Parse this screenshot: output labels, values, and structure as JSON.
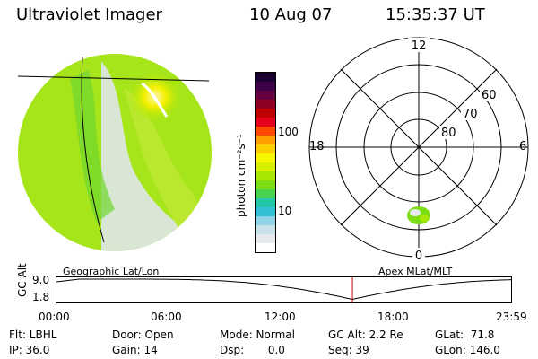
{
  "header": {
    "title": "Ultraviolet Imager",
    "date": "10 Aug 07",
    "time": "15:35:37 UT"
  },
  "colorbar": {
    "unit_label": "photon cm⁻²s⁻¹",
    "ticks": [
      "100",
      "10"
    ],
    "colors_top_to_bottom": [
      "#1a0030",
      "#3b0046",
      "#650040",
      "#8e0022",
      "#be0000",
      "#e8001f",
      "#ff4a00",
      "#ff9f00",
      "#ffd000",
      "#f6f600",
      "#d7f000",
      "#a8e800",
      "#7bdd12",
      "#49d24d",
      "#22c7a6",
      "#33c0d7",
      "#8fd3e6",
      "#c8e2ea",
      "#e6eaef",
      "#ffffff"
    ]
  },
  "polar": {
    "mlt_labels": {
      "top": "12",
      "bottom": "0",
      "left": "18",
      "right": "6"
    },
    "lat_labels": [
      "60",
      "70",
      "80"
    ]
  },
  "timeline": {
    "axis_label": "GC Alt",
    "y_ticks": [
      "9.0",
      "1.8"
    ],
    "left_title": "Geographic Lat/Lon",
    "right_title": "Apex MLat/MLT",
    "x_ticks": [
      "00:00",
      "06:00",
      "12:00",
      "18:00",
      "23:59"
    ],
    "current_time_fraction": 0.6497,
    "marker_color": "#cc0000"
  },
  "status": {
    "flt": "Flt: LBHL",
    "ip": "IP: 36.0",
    "door": "Door: Open",
    "gain": "Gain: 14",
    "mode": "Mode: Normal",
    "dsp": "Dsp:       0.0",
    "gcalt": "GC Alt: 2.2 Re",
    "seq": "Seq: 39",
    "glat": "GLat:  71.8",
    "glon": "GLon: 146.0"
  }
}
